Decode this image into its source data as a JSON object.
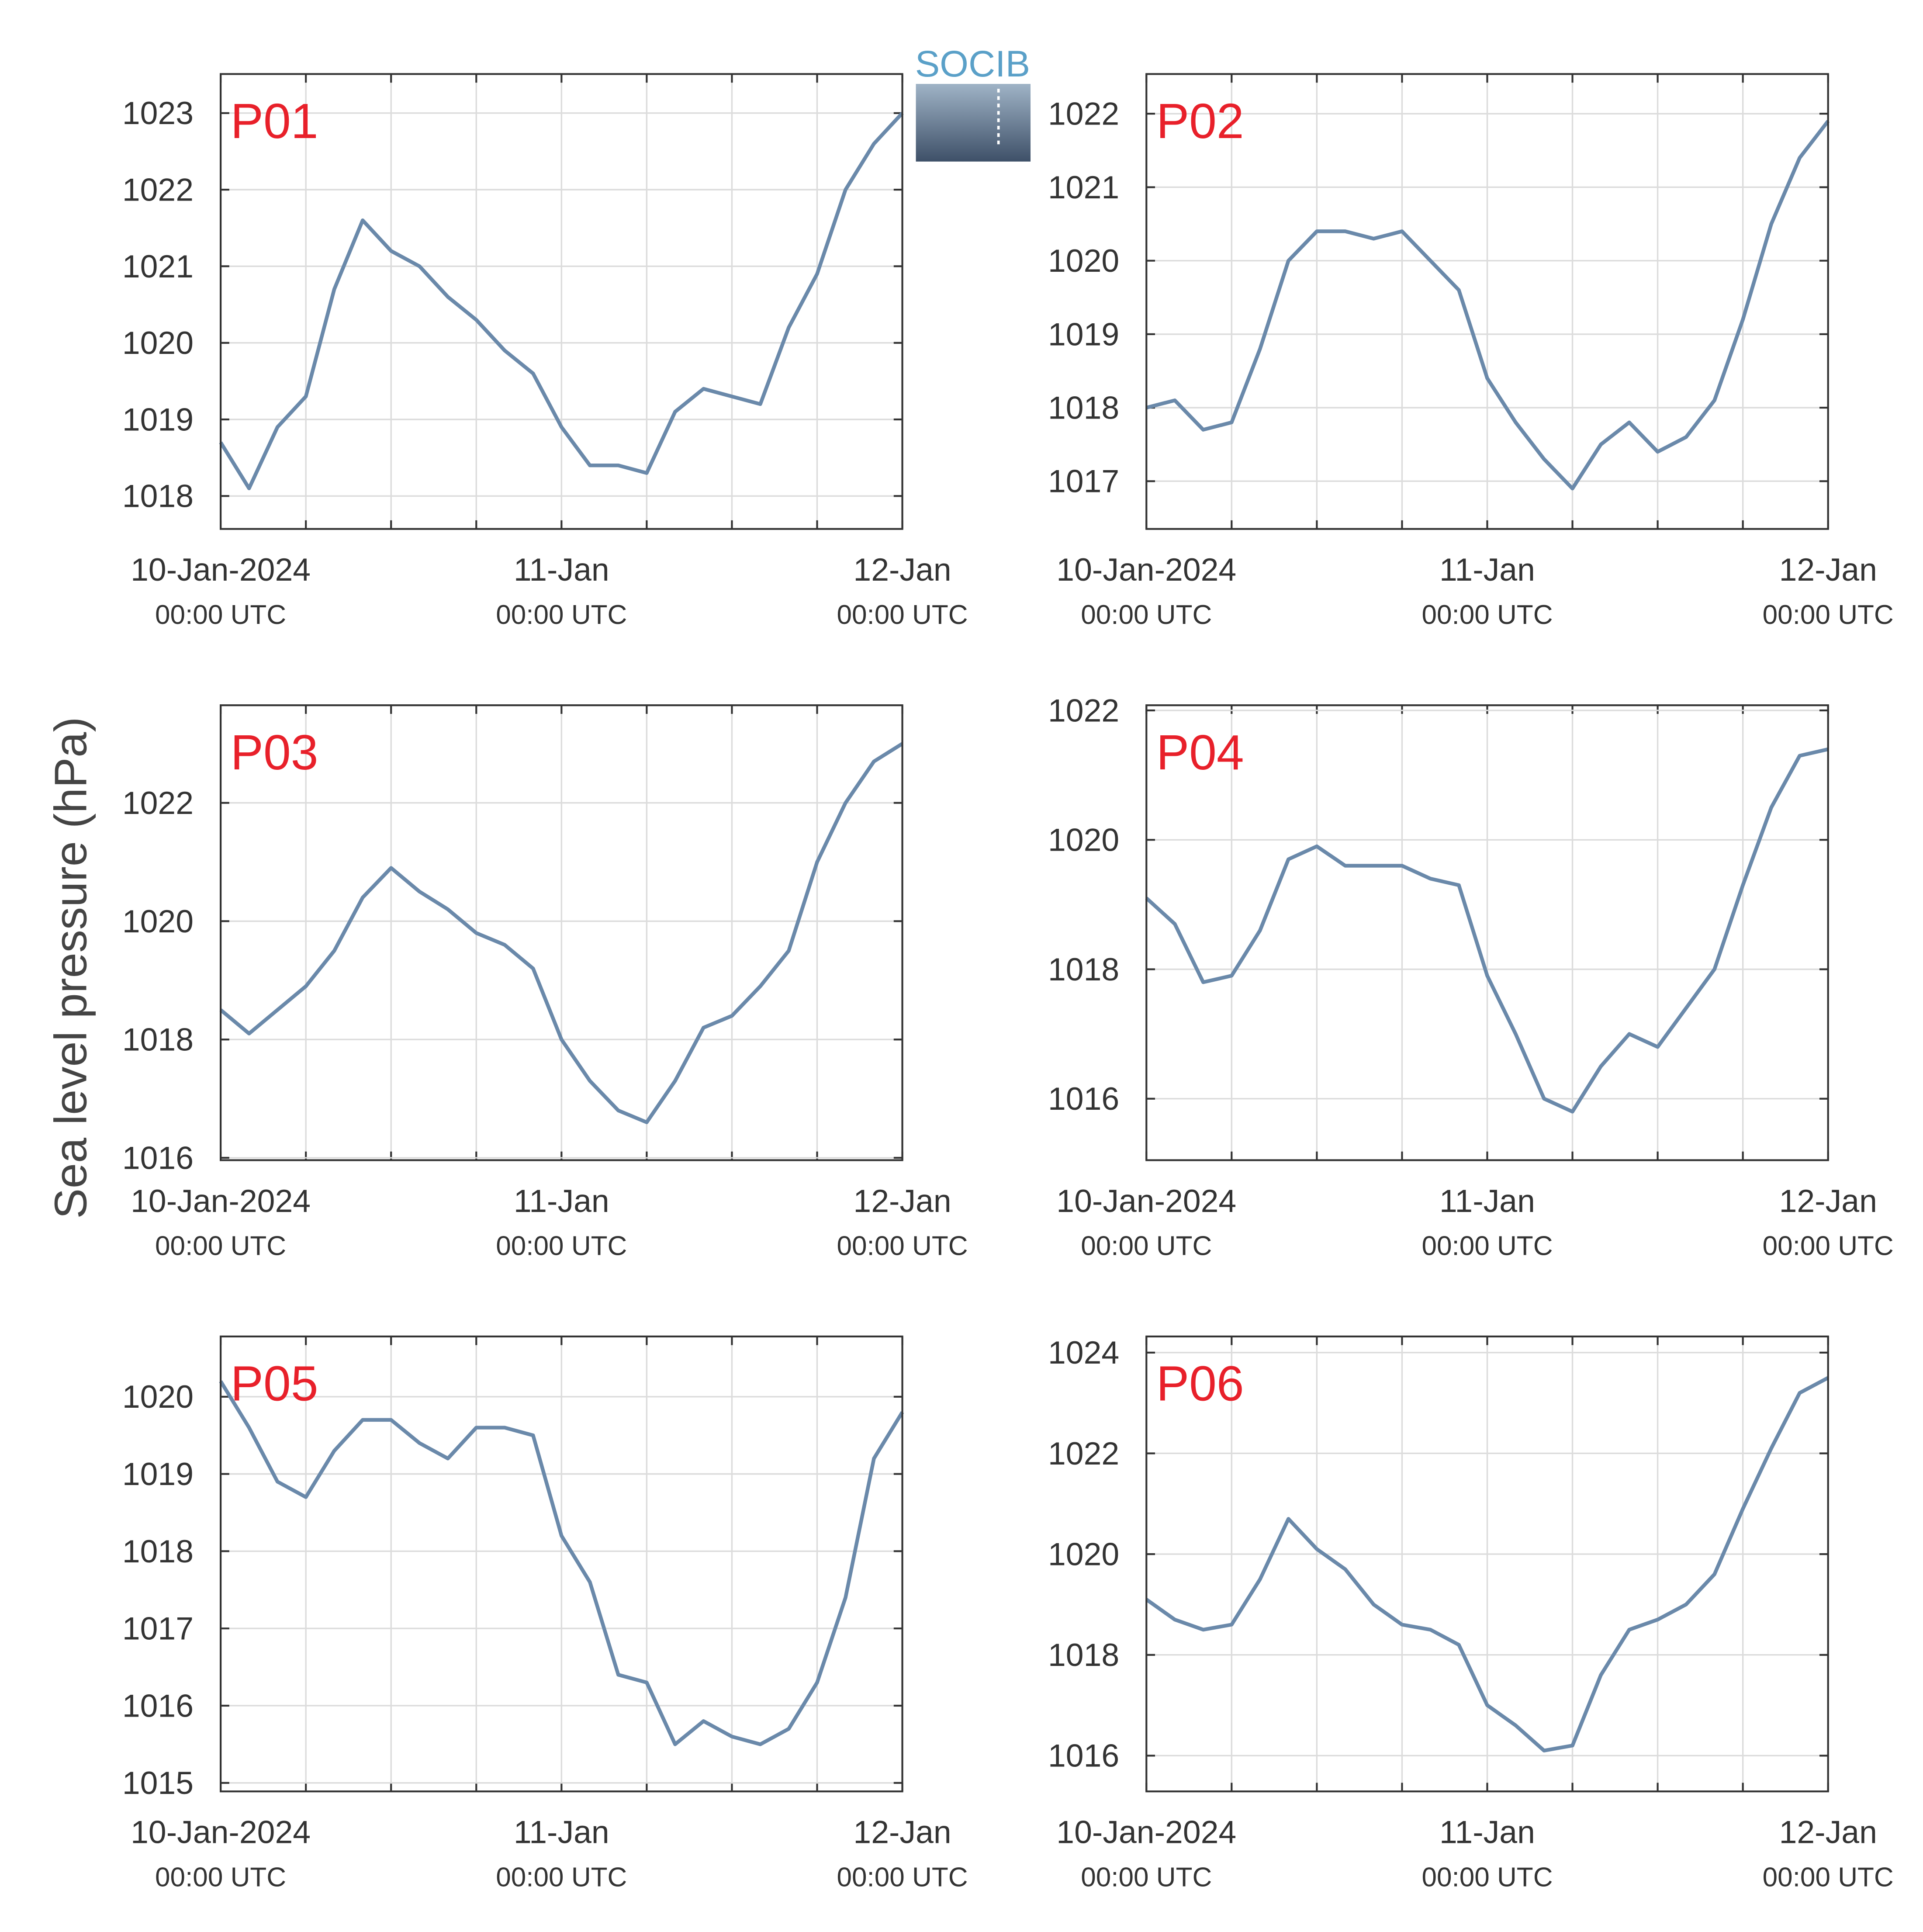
{
  "ylabel": "Sea level pressure (hPa)",
  "logo": "SOCIB",
  "chart_data": [
    {
      "type": "line",
      "title": "P01",
      "title_color": "#e8202a",
      "grid": true,
      "x": [
        0,
        2,
        4,
        6,
        8,
        10,
        12,
        14,
        16,
        18,
        20,
        22,
        24,
        26,
        28,
        30,
        32,
        34,
        36,
        38,
        40,
        42,
        44,
        46,
        48
      ],
      "xlim": [
        0,
        48
      ],
      "xticks": [
        {
          "value": 0,
          "label": "10-Jan-2024",
          "sublabel": "00:00 UTC"
        },
        {
          "value": 24,
          "label": "11-Jan",
          "sublabel": "00:00 UTC"
        },
        {
          "value": 48,
          "label": "12-Jan",
          "sublabel": "00:00 UTC"
        }
      ],
      "xminorticks": [
        6,
        12,
        18,
        30,
        36,
        42
      ],
      "ylim": [
        1017.57,
        1023.51
      ],
      "yticks": [
        1018,
        1019,
        1020,
        1021,
        1022,
        1023
      ],
      "series": [
        {
          "color": "#6a89aa",
          "values": [
            1018.7,
            1018.1,
            1018.9,
            1019.3,
            1020.7,
            1021.6,
            1021.2,
            1021.0,
            1020.6,
            1020.3,
            1019.9,
            1019.6,
            1018.9,
            1018.4,
            1018.4,
            1018.3,
            1019.1,
            1019.4,
            1019.3,
            1019.2,
            1020.2,
            1020.9,
            1022.0,
            1022.6,
            1023.0
          ]
        }
      ]
    },
    {
      "type": "line",
      "title": "P02",
      "title_color": "#e8202a",
      "grid": true,
      "x": [
        0,
        2,
        4,
        6,
        8,
        10,
        12,
        14,
        16,
        18,
        20,
        22,
        24,
        26,
        28,
        30,
        32,
        34,
        36,
        38,
        40,
        42,
        44,
        46,
        48
      ],
      "xlim": [
        0,
        48
      ],
      "xticks": [
        {
          "value": 0,
          "label": "10-Jan-2024",
          "sublabel": "00:00 UTC"
        },
        {
          "value": 24,
          "label": "11-Jan",
          "sublabel": "00:00 UTC"
        },
        {
          "value": 48,
          "label": "12-Jan",
          "sublabel": "00:00 UTC"
        }
      ],
      "xminorticks": [
        6,
        12,
        18,
        30,
        36,
        42
      ],
      "ylim": [
        1016.35,
        1022.54
      ],
      "yticks": [
        1017,
        1018,
        1019,
        1020,
        1021,
        1022
      ],
      "series": [
        {
          "color": "#6a89aa",
          "values": [
            1018.0,
            1018.1,
            1017.7,
            1017.8,
            1018.8,
            1020.0,
            1020.4,
            1020.4,
            1020.3,
            1020.4,
            1020.0,
            1019.6,
            1018.4,
            1017.8,
            1017.3,
            1016.9,
            1017.5,
            1017.8,
            1017.4,
            1017.6,
            1018.1,
            1019.2,
            1020.5,
            1021.4,
            1021.9
          ]
        }
      ]
    },
    {
      "type": "line",
      "title": "P03",
      "title_color": "#e8202a",
      "grid": true,
      "x": [
        0,
        2,
        4,
        6,
        8,
        10,
        12,
        14,
        16,
        18,
        20,
        22,
        24,
        26,
        28,
        30,
        32,
        34,
        36,
        38,
        40,
        42,
        44,
        46,
        48
      ],
      "xlim": [
        0,
        48
      ],
      "xticks": [
        {
          "value": 0,
          "label": "10-Jan-2024",
          "sublabel": "00:00 UTC"
        },
        {
          "value": 24,
          "label": "11-Jan",
          "sublabel": "00:00 UTC"
        },
        {
          "value": 48,
          "label": "12-Jan",
          "sublabel": "00:00 UTC"
        }
      ],
      "xminorticks": [
        6,
        12,
        18,
        30,
        36,
        42
      ],
      "ylim": [
        1015.96,
        1023.65
      ],
      "yticks": [
        1016,
        1018,
        1020,
        1022
      ],
      "series": [
        {
          "color": "#6a89aa",
          "values": [
            1018.5,
            1018.1,
            1018.5,
            1018.9,
            1019.5,
            1020.4,
            1020.9,
            1020.5,
            1020.2,
            1019.8,
            1019.6,
            1019.2,
            1018.0,
            1017.3,
            1016.8,
            1016.6,
            1017.3,
            1018.2,
            1018.4,
            1018.9,
            1019.5,
            1021.0,
            1022.0,
            1022.7,
            1023.0
          ]
        }
      ]
    },
    {
      "type": "line",
      "title": "P04",
      "title_color": "#e8202a",
      "grid": true,
      "x": [
        0,
        2,
        4,
        6,
        8,
        10,
        12,
        14,
        16,
        18,
        20,
        22,
        24,
        26,
        28,
        30,
        32,
        34,
        36,
        38,
        40,
        42,
        44,
        46,
        48
      ],
      "xlim": [
        0,
        48
      ],
      "xticks": [
        {
          "value": 0,
          "label": "10-Jan-2024",
          "sublabel": "00:00 UTC"
        },
        {
          "value": 24,
          "label": "11-Jan",
          "sublabel": "00:00 UTC"
        },
        {
          "value": 48,
          "label": "12-Jan",
          "sublabel": "00:00 UTC"
        }
      ],
      "xminorticks": [
        6,
        12,
        18,
        30,
        36,
        42
      ],
      "ylim": [
        1015.05,
        1022.08
      ],
      "yticks": [
        1016,
        1018,
        1020,
        1022
      ],
      "series": [
        {
          "color": "#6a89aa",
          "values": [
            1019.1,
            1018.7,
            1017.8,
            1017.9,
            1018.6,
            1019.7,
            1019.9,
            1019.6,
            1019.6,
            1019.6,
            1019.4,
            1019.3,
            1017.9,
            1017.0,
            1016.0,
            1015.8,
            1016.5,
            1017.0,
            1016.8,
            1017.4,
            1018.0,
            1019.3,
            1020.5,
            1021.3,
            1021.4
          ]
        }
      ]
    },
    {
      "type": "line",
      "title": "P05",
      "title_color": "#e8202a",
      "grid": true,
      "x": [
        0,
        2,
        4,
        6,
        8,
        10,
        12,
        14,
        16,
        18,
        20,
        22,
        24,
        26,
        28,
        30,
        32,
        34,
        36,
        38,
        40,
        42,
        44,
        46,
        48
      ],
      "xlim": [
        0,
        48
      ],
      "xticks": [
        {
          "value": 0,
          "label": "10-Jan-2024",
          "sublabel": "00:00 UTC"
        },
        {
          "value": 24,
          "label": "11-Jan",
          "sublabel": "00:00 UTC"
        },
        {
          "value": 48,
          "label": "12-Jan",
          "sublabel": "00:00 UTC"
        }
      ],
      "xminorticks": [
        6,
        12,
        18,
        30,
        36,
        42
      ],
      "ylim": [
        1014.89,
        1020.78
      ],
      "yticks": [
        1015,
        1016,
        1017,
        1018,
        1019,
        1020
      ],
      "series": [
        {
          "color": "#6a89aa",
          "values": [
            1020.2,
            1019.6,
            1018.9,
            1018.7,
            1019.3,
            1019.7,
            1019.7,
            1019.4,
            1019.2,
            1019.6,
            1019.6,
            1019.5,
            1018.2,
            1017.6,
            1016.4,
            1016.3,
            1015.5,
            1015.8,
            1015.6,
            1015.5,
            1015.7,
            1016.3,
            1017.4,
            1019.2,
            1019.8
          ]
        }
      ]
    },
    {
      "type": "line",
      "title": "P06",
      "title_color": "#e8202a",
      "grid": true,
      "x": [
        0,
        2,
        4,
        6,
        8,
        10,
        12,
        14,
        16,
        18,
        20,
        22,
        24,
        26,
        28,
        30,
        32,
        34,
        36,
        38,
        40,
        42,
        44,
        46,
        48
      ],
      "xlim": [
        0,
        48
      ],
      "xticks": [
        {
          "value": 0,
          "label": "10-Jan-2024",
          "sublabel": "00:00 UTC"
        },
        {
          "value": 24,
          "label": "11-Jan",
          "sublabel": "00:00 UTC"
        },
        {
          "value": 48,
          "label": "12-Jan",
          "sublabel": "00:00 UTC"
        }
      ],
      "xminorticks": [
        6,
        12,
        18,
        30,
        36,
        42
      ],
      "ylim": [
        1015.29,
        1024.32
      ],
      "yticks": [
        1016,
        1018,
        1020,
        1022,
        1024
      ],
      "series": [
        {
          "color": "#6a89aa",
          "values": [
            1019.1,
            1018.7,
            1018.5,
            1018.6,
            1019.5,
            1020.7,
            1020.1,
            1019.7,
            1019.0,
            1018.6,
            1018.5,
            1018.2,
            1017.0,
            1016.6,
            1016.1,
            1016.2,
            1017.6,
            1018.5,
            1018.7,
            1019.0,
            1019.6,
            1020.9,
            1022.1,
            1023.2,
            1023.5
          ]
        }
      ]
    }
  ]
}
